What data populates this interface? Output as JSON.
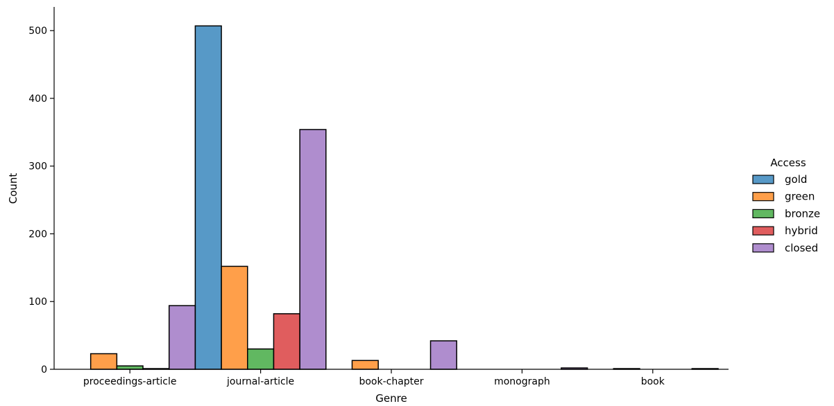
{
  "chart_data": {
    "type": "bar",
    "title": "",
    "xlabel": "Genre",
    "ylabel": "Count",
    "ylim": [
      0,
      535
    ],
    "yticks": [
      0,
      100,
      200,
      300,
      400,
      500
    ],
    "grid": false,
    "legend_title": "Access",
    "legend_position": "right",
    "categories": [
      "proceedings-article",
      "journal-article",
      "book-chapter",
      "monograph",
      "book"
    ],
    "series": [
      {
        "name": "gold",
        "color": "#1f77b4",
        "values": [
          0,
          507,
          0,
          0,
          0
        ]
      },
      {
        "name": "green",
        "color": "#ff7f0e",
        "values": [
          23,
          152,
          13,
          0,
          1
        ]
      },
      {
        "name": "bronze",
        "color": "#2ca02c",
        "values": [
          5,
          30,
          0,
          0,
          0
        ]
      },
      {
        "name": "hybrid",
        "color": "#d62728",
        "values": [
          1,
          82,
          0,
          0,
          0
        ]
      },
      {
        "name": "closed",
        "color": "#9467bd",
        "values": [
          94,
          354,
          42,
          2,
          1
        ]
      }
    ]
  }
}
